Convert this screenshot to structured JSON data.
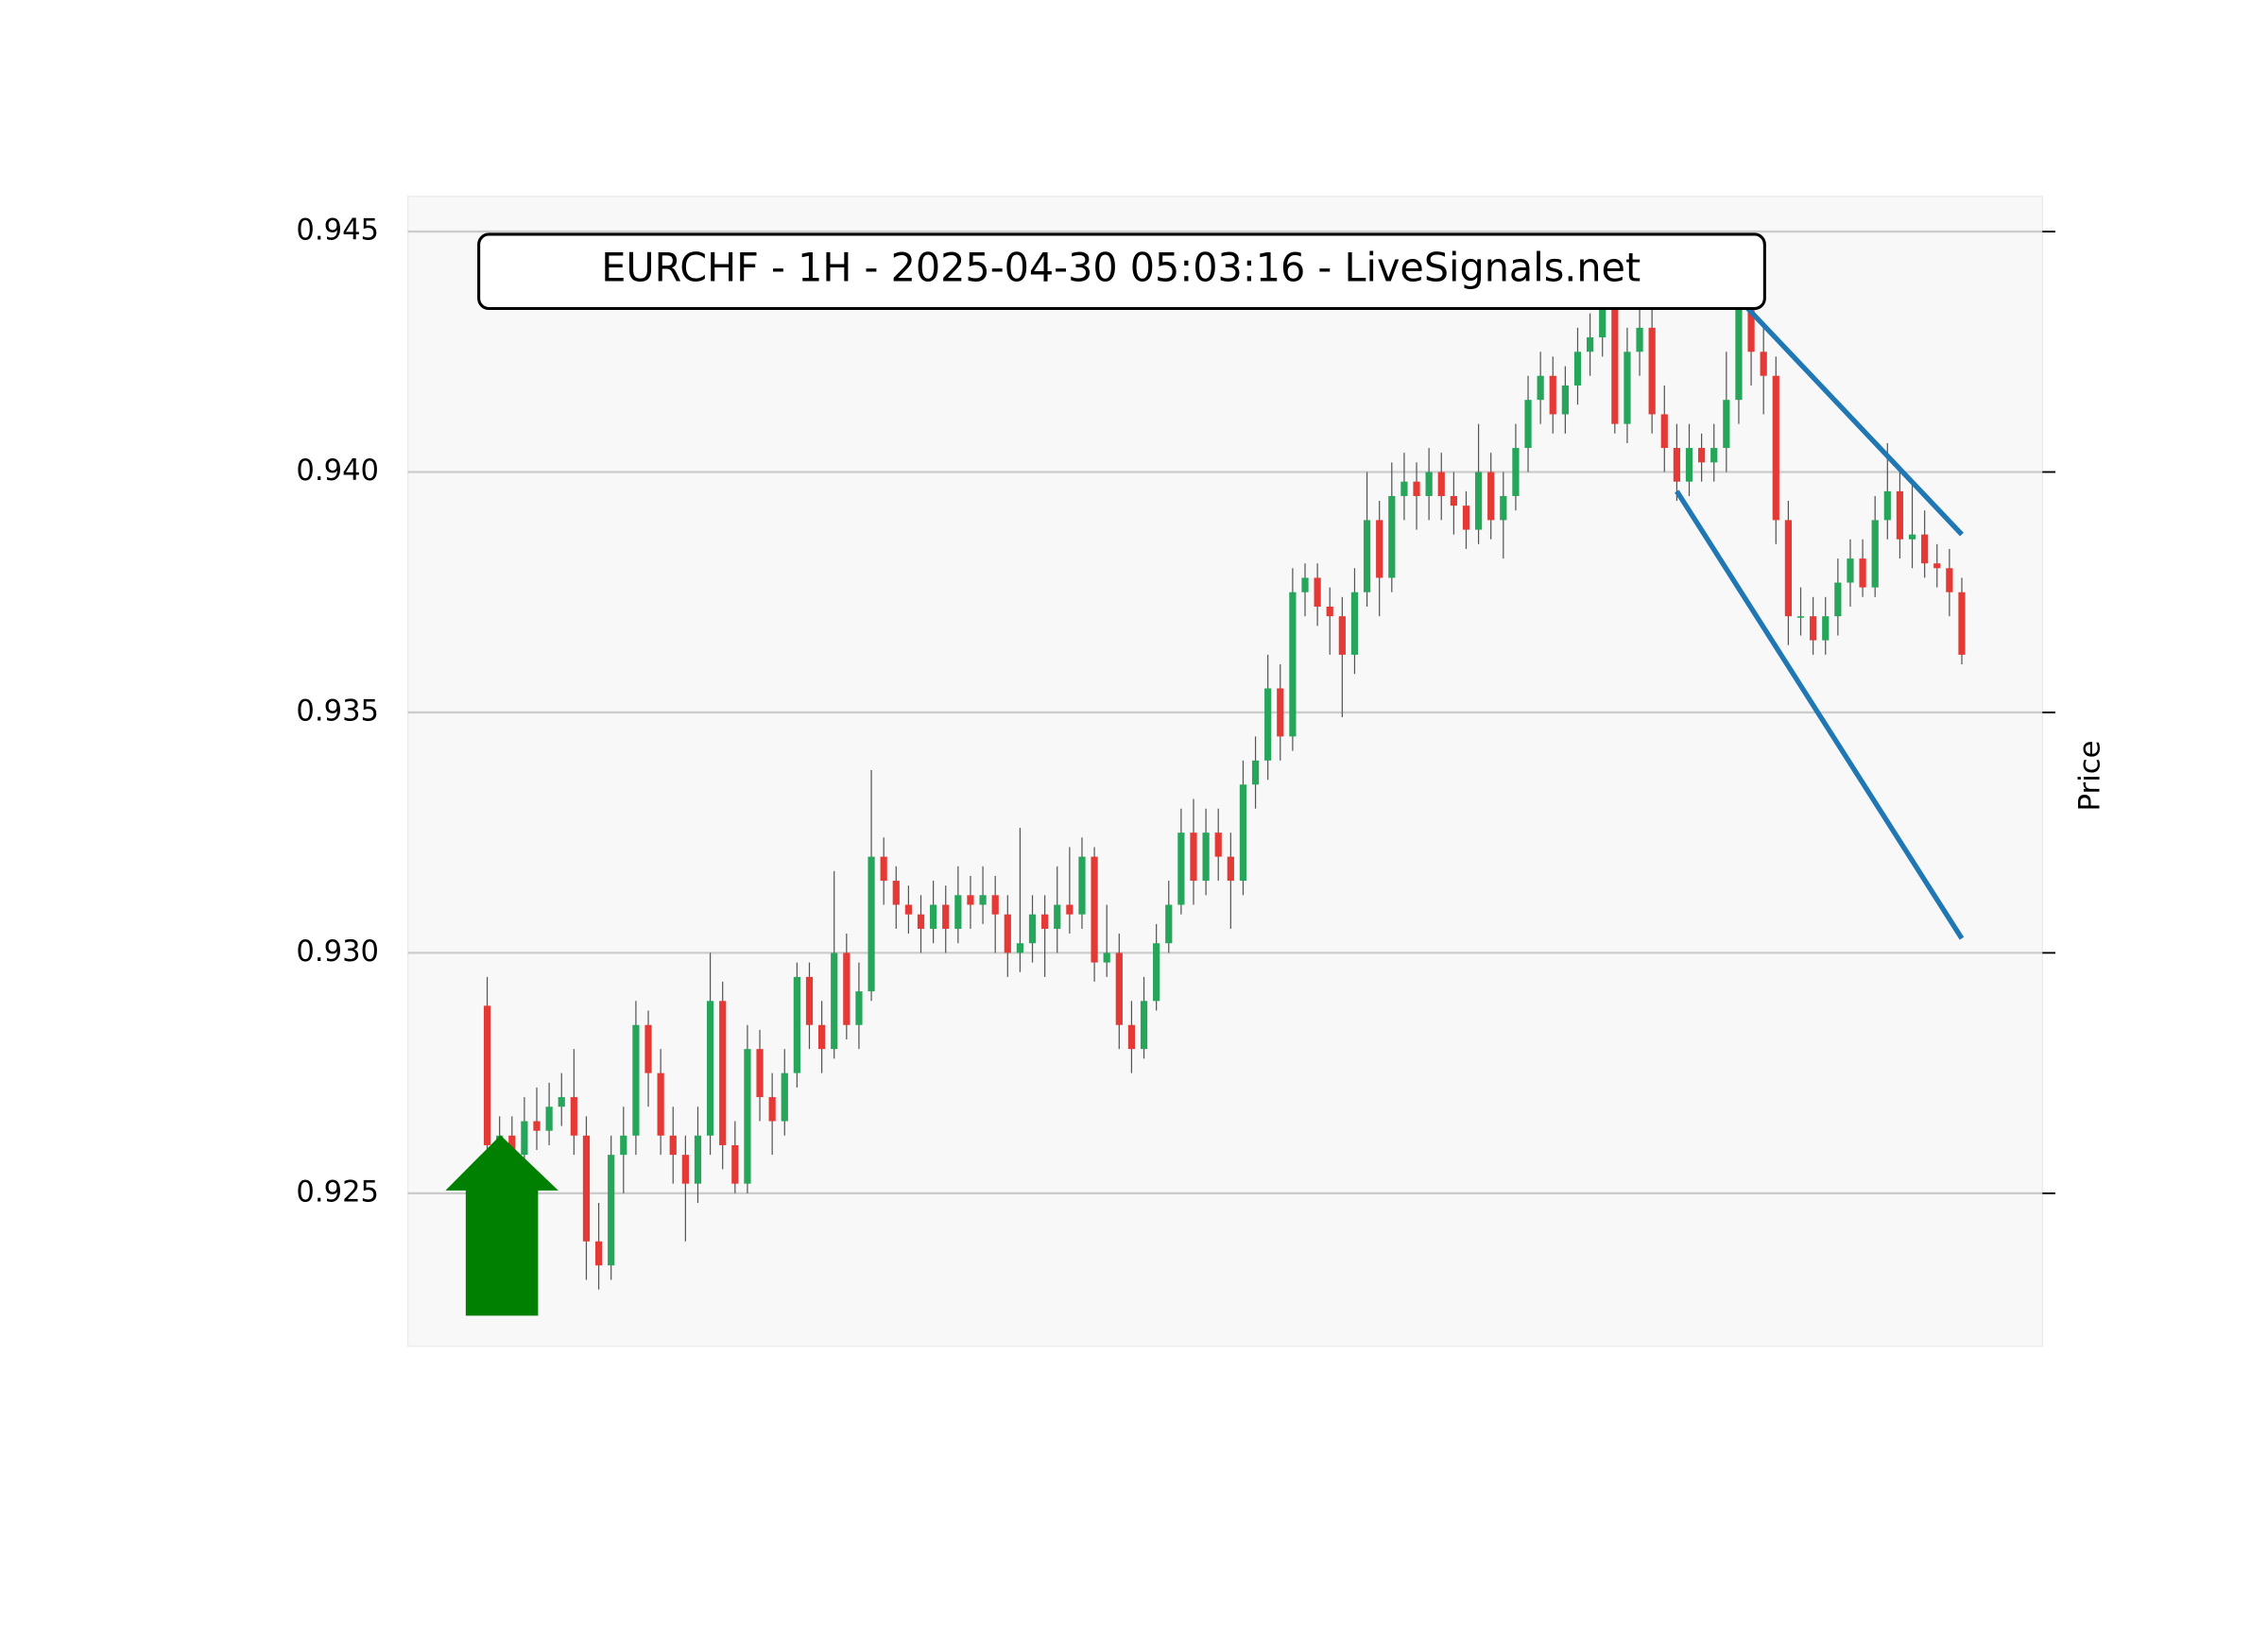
{
  "chart_data": {
    "type": "candlestick",
    "title": "EURCHF - 1H - 2025-04-30 05:03:16 - LiveSignals.net",
    "y_label": "Price",
    "up_color": "#26a65b",
    "down_color": "#e53935",
    "wick_color": "#555555",
    "grid": true,
    "xlim": [
      -6.4,
      125.5
    ],
    "ylim": [
      0.92182,
      0.94573
    ],
    "yticks": [
      0.925,
      {
        "value": 0.93,
        "label": "0.930"
      },
      0.935,
      {
        "value": 0.94,
        "label": "0.940"
      },
      0.945
    ],
    "ohlc": [
      [
        0.9289,
        0.9295,
        0.9256,
        0.926
      ],
      [
        0.926,
        0.9266,
        0.9255,
        0.9262
      ],
      [
        0.9262,
        0.9266,
        0.9254,
        0.9258
      ],
      [
        0.9258,
        0.927,
        0.9255,
        0.9265
      ],
      [
        0.9265,
        0.9272,
        0.9259,
        0.9263
      ],
      [
        0.9263,
        0.9273,
        0.926,
        0.9268
      ],
      [
        0.9268,
        0.9275,
        0.9264,
        0.927
      ],
      [
        0.927,
        0.928,
        0.9258,
        0.9262
      ],
      [
        0.9262,
        0.9266,
        0.9232,
        0.924
      ],
      [
        0.924,
        0.9248,
        0.923,
        0.9235
      ],
      [
        0.9235,
        0.9262,
        0.9232,
        0.9258
      ],
      [
        0.9258,
        0.9268,
        0.925,
        0.9262
      ],
      [
        0.9262,
        0.929,
        0.9258,
        0.9285
      ],
      [
        0.9285,
        0.9288,
        0.9268,
        0.9275
      ],
      [
        0.9275,
        0.928,
        0.9258,
        0.9262
      ],
      [
        0.9262,
        0.9268,
        0.9252,
        0.9258
      ],
      [
        0.9258,
        0.9262,
        0.924,
        0.9252
      ],
      [
        0.9252,
        0.9268,
        0.9248,
        0.9262
      ],
      [
        0.9262,
        0.93,
        0.9258,
        0.929
      ],
      [
        0.929,
        0.9294,
        0.9255,
        0.926
      ],
      [
        0.926,
        0.9265,
        0.925,
        0.9252
      ],
      [
        0.9252,
        0.9285,
        0.925,
        0.928
      ],
      [
        0.928,
        0.9284,
        0.9265,
        0.927
      ],
      [
        0.927,
        0.9275,
        0.9258,
        0.9265
      ],
      [
        0.9265,
        0.928,
        0.9262,
        0.9275
      ],
      [
        0.9275,
        0.9298,
        0.9272,
        0.9295
      ],
      [
        0.9295,
        0.9298,
        0.928,
        0.9285
      ],
      [
        0.9285,
        0.929,
        0.9275,
        0.928
      ],
      [
        0.928,
        0.9317,
        0.9278,
        0.93
      ],
      [
        0.93,
        0.9304,
        0.9282,
        0.9285
      ],
      [
        0.9285,
        0.9298,
        0.928,
        0.9292
      ],
      [
        0.9292,
        0.9338,
        0.929,
        0.932
      ],
      [
        0.932,
        0.9324,
        0.931,
        0.9315
      ],
      [
        0.9315,
        0.9318,
        0.9305,
        0.931
      ],
      [
        0.931,
        0.9314,
        0.9304,
        0.9308
      ],
      [
        0.9308,
        0.9312,
        0.93,
        0.9305
      ],
      [
        0.9305,
        0.9315,
        0.9302,
        0.931
      ],
      [
        0.931,
        0.9314,
        0.93,
        0.9305
      ],
      [
        0.9305,
        0.9318,
        0.9302,
        0.9312
      ],
      [
        0.9312,
        0.9316,
        0.9305,
        0.931
      ],
      [
        0.931,
        0.9318,
        0.9306,
        0.9312
      ],
      [
        0.9312,
        0.9316,
        0.93,
        0.9308
      ],
      [
        0.9308,
        0.9312,
        0.9295,
        0.93
      ],
      [
        0.93,
        0.9326,
        0.9296,
        0.9302
      ],
      [
        0.9302,
        0.9312,
        0.9298,
        0.9308
      ],
      [
        0.9308,
        0.9312,
        0.9295,
        0.9305
      ],
      [
        0.9305,
        0.9318,
        0.93,
        0.931
      ],
      [
        0.931,
        0.9322,
        0.9304,
        0.9308
      ],
      [
        0.9308,
        0.9324,
        0.9305,
        0.932
      ],
      [
        0.932,
        0.9322,
        0.9294,
        0.9298
      ],
      [
        0.9298,
        0.931,
        0.9295,
        0.93
      ],
      [
        0.93,
        0.9304,
        0.928,
        0.9285
      ],
      [
        0.9285,
        0.929,
        0.9275,
        0.928
      ],
      [
        0.928,
        0.9295,
        0.9278,
        0.929
      ],
      [
        0.929,
        0.9306,
        0.9288,
        0.9302
      ],
      [
        0.9302,
        0.9315,
        0.93,
        0.931
      ],
      [
        0.931,
        0.933,
        0.9308,
        0.9325
      ],
      [
        0.9325,
        0.9332,
        0.931,
        0.9315
      ],
      [
        0.9315,
        0.933,
        0.9312,
        0.9325
      ],
      [
        0.9325,
        0.933,
        0.9315,
        0.932
      ],
      [
        0.932,
        0.9325,
        0.9305,
        0.9315
      ],
      [
        0.9315,
        0.934,
        0.9312,
        0.9335
      ],
      [
        0.9335,
        0.9345,
        0.933,
        0.934
      ],
      [
        0.934,
        0.9362,
        0.9336,
        0.9355
      ],
      [
        0.9355,
        0.936,
        0.934,
        0.9345
      ],
      [
        0.9345,
        0.938,
        0.9342,
        0.9375
      ],
      [
        0.9375,
        0.9381,
        0.937,
        0.9378
      ],
      [
        0.9378,
        0.9381,
        0.9368,
        0.9372
      ],
      [
        0.9372,
        0.9376,
        0.9362,
        0.937
      ],
      [
        0.937,
        0.9374,
        0.9349,
        0.9362
      ],
      [
        0.9362,
        0.938,
        0.9358,
        0.9375
      ],
      [
        0.9375,
        0.94,
        0.9372,
        0.939
      ],
      [
        0.939,
        0.9394,
        0.937,
        0.9378
      ],
      [
        0.9378,
        0.9402,
        0.9375,
        0.9395
      ],
      [
        0.9395,
        0.9404,
        0.939,
        0.9398
      ],
      [
        0.9398,
        0.9402,
        0.9388,
        0.9395
      ],
      [
        0.9395,
        0.9405,
        0.939,
        0.94
      ],
      [
        0.94,
        0.9404,
        0.939,
        0.9395
      ],
      [
        0.9395,
        0.94,
        0.9387,
        0.9393
      ],
      [
        0.9393,
        0.9396,
        0.9384,
        0.9388
      ],
      [
        0.9388,
        0.941,
        0.9385,
        0.94
      ],
      [
        0.94,
        0.9404,
        0.9386,
        0.939
      ],
      [
        0.939,
        0.94,
        0.9382,
        0.9395
      ],
      [
        0.9395,
        0.941,
        0.9392,
        0.9405
      ],
      [
        0.9405,
        0.942,
        0.94,
        0.9415
      ],
      [
        0.9415,
        0.9425,
        0.941,
        0.942
      ],
      [
        0.942,
        0.9424,
        0.9408,
        0.9412
      ],
      [
        0.9412,
        0.9422,
        0.9408,
        0.9418
      ],
      [
        0.9418,
        0.943,
        0.9414,
        0.9425
      ],
      [
        0.9425,
        0.9433,
        0.942,
        0.9428
      ],
      [
        0.9428,
        0.9443,
        0.9424,
        0.9435
      ],
      [
        0.9435,
        0.944,
        0.9408,
        0.941
      ],
      [
        0.941,
        0.943,
        0.9406,
        0.9425
      ],
      [
        0.9425,
        0.9437,
        0.942,
        0.943
      ],
      [
        0.943,
        0.9434,
        0.9408,
        0.9412
      ],
      [
        0.9412,
        0.9418,
        0.94,
        0.9405
      ],
      [
        0.9405,
        0.941,
        0.9394,
        0.9398
      ],
      [
        0.9398,
        0.941,
        0.9395,
        0.9405
      ],
      [
        0.9405,
        0.9408,
        0.9398,
        0.9402
      ],
      [
        0.9402,
        0.941,
        0.9398,
        0.9405
      ],
      [
        0.9405,
        0.9425,
        0.94,
        0.9415
      ],
      [
        0.9415,
        0.9445,
        0.941,
        0.9435
      ],
      [
        0.9435,
        0.944,
        0.9418,
        0.9425
      ],
      [
        0.9425,
        0.943,
        0.9412,
        0.942
      ],
      [
        0.942,
        0.9424,
        0.9385,
        0.939
      ],
      [
        0.939,
        0.9394,
        0.9364,
        0.937
      ],
      [
        0.937,
        0.9376,
        0.9366,
        0.937
      ],
      [
        0.937,
        0.9374,
        0.9362,
        0.9365
      ],
      [
        0.9365,
        0.9374,
        0.9362,
        0.937
      ],
      [
        0.937,
        0.9382,
        0.9366,
        0.9377
      ],
      [
        0.9377,
        0.9386,
        0.9372,
        0.9382
      ],
      [
        0.9382,
        0.9386,
        0.9374,
        0.9376
      ],
      [
        0.9376,
        0.9395,
        0.9374,
        0.939
      ],
      [
        0.939,
        0.9406,
        0.9386,
        0.9396
      ],
      [
        0.9396,
        0.94,
        0.9382,
        0.9386
      ],
      [
        0.9386,
        0.9398,
        0.938,
        0.9387
      ],
      [
        0.9387,
        0.9392,
        0.9378,
        0.9381
      ],
      [
        0.9381,
        0.9385,
        0.9376,
        0.938
      ],
      [
        0.938,
        0.9384,
        0.937,
        0.9375
      ],
      [
        0.9375,
        0.9378,
        0.936,
        0.9362
      ]
    ],
    "trendlines": [
      {
        "x": [
          101,
          119
        ],
        "y": [
          0.9436,
          0.9387
        ],
        "color": "#1f77b4"
      },
      {
        "x": [
          96,
          119
        ],
        "y": [
          0.9396,
          0.9303
        ],
        "color": "#1f77b4"
      }
    ]
  }
}
